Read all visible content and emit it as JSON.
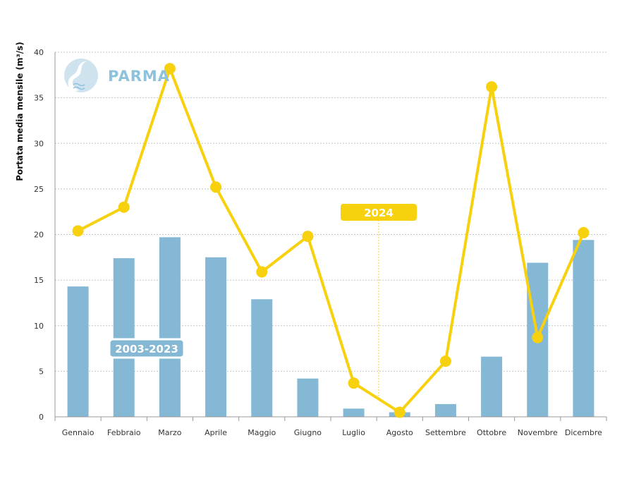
{
  "logo": {
    "name": "PARMA",
    "icon": "river-drop-icon"
  },
  "chart_data": {
    "type": "bar",
    "ylabel": "Portata media mensile (m³/s)",
    "ylim": [
      0,
      40
    ],
    "yticks": [
      0,
      5,
      10,
      15,
      20,
      25,
      30,
      35,
      40
    ],
    "grid": true,
    "categories": [
      "Gennaio",
      "Febbraio",
      "Marzo",
      "Aprile",
      "Maggio",
      "Giugno",
      "Luglio",
      "Agosto",
      "Settembre",
      "Ottobre",
      "Novembre",
      "Dicembre"
    ],
    "series": [
      {
        "name": "2003-2023",
        "type": "bar",
        "color": "#84b8d4",
        "values": [
          14.3,
          17.4,
          19.7,
          17.5,
          12.9,
          4.2,
          0.9,
          0.5,
          1.4,
          6.6,
          16.9,
          19.4
        ]
      },
      {
        "name": "2024",
        "type": "line",
        "color": "#f7d00e",
        "values": [
          20.4,
          23.0,
          38.2,
          25.2,
          15.9,
          19.8,
          3.7,
          0.5,
          6.1,
          36.2,
          8.7,
          20.2
        ]
      }
    ]
  }
}
